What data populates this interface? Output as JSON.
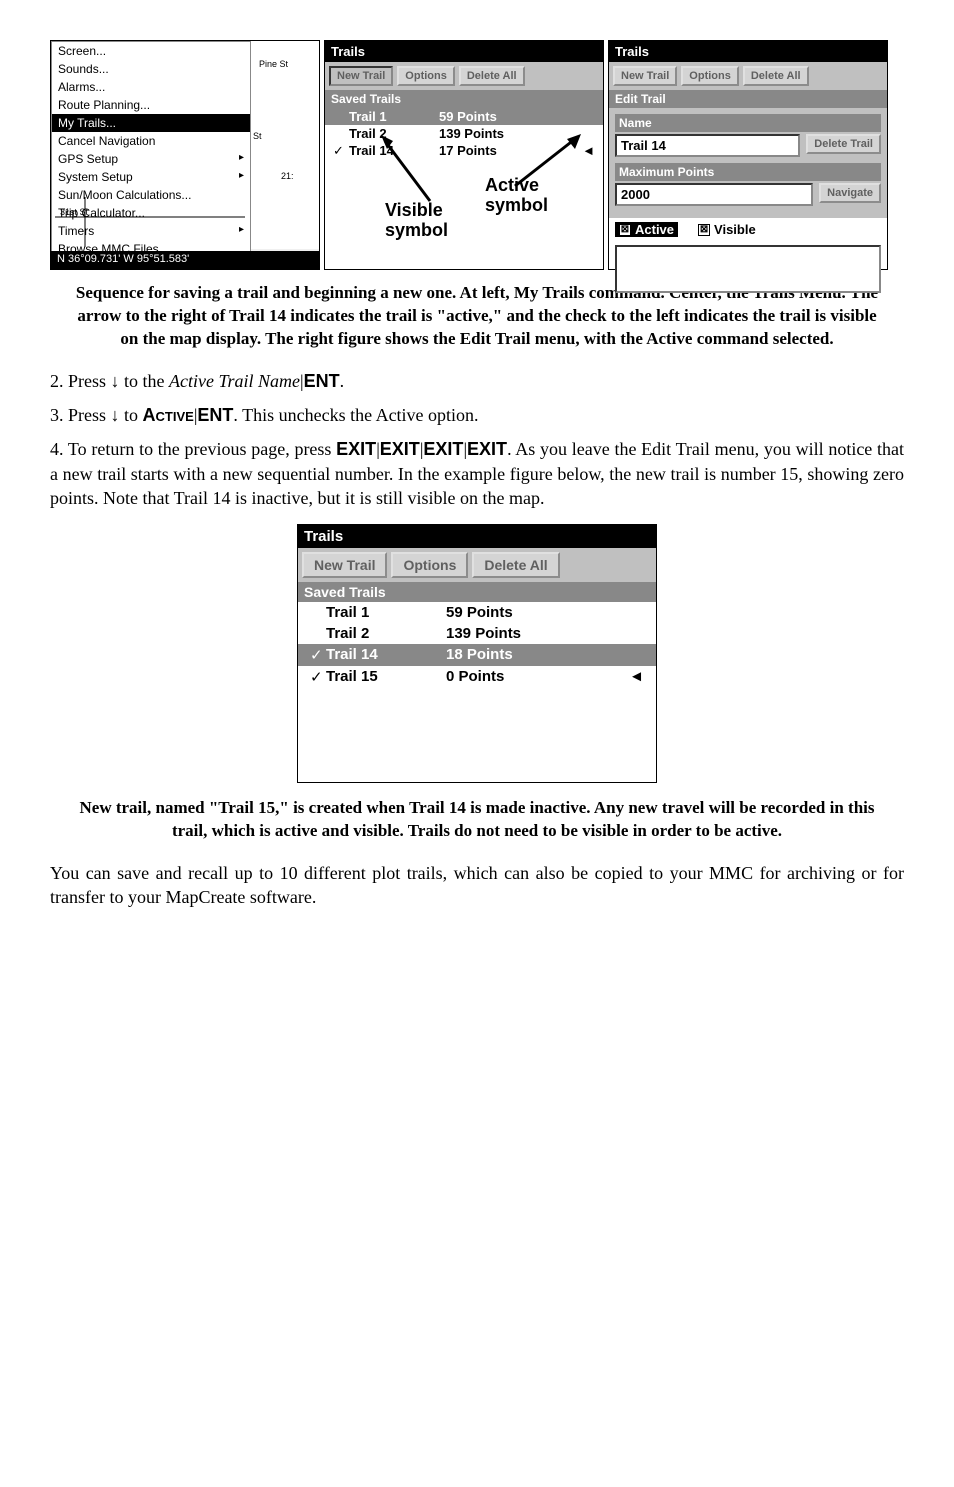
{
  "left_panel": {
    "menu_items": [
      {
        "label": "Screen...",
        "highlighted": false,
        "arrow": false
      },
      {
        "label": "Sounds...",
        "highlighted": false,
        "arrow": false
      },
      {
        "label": "Alarms...",
        "highlighted": false,
        "arrow": false
      },
      {
        "label": "Route Planning...",
        "highlighted": false,
        "arrow": false
      },
      {
        "label": "My Trails...",
        "highlighted": true,
        "arrow": false
      },
      {
        "label": "Cancel Navigation",
        "highlighted": false,
        "arrow": false
      },
      {
        "label": "GPS Setup",
        "highlighted": false,
        "arrow": true
      },
      {
        "label": "System Setup",
        "highlighted": false,
        "arrow": true
      },
      {
        "label": "Sun/Moon Calculations...",
        "highlighted": false,
        "arrow": false
      },
      {
        "label": "Trip Calculator...",
        "highlighted": false,
        "arrow": false
      },
      {
        "label": "Timers",
        "highlighted": false,
        "arrow": true
      },
      {
        "label": "Browse MMC Files...",
        "highlighted": false,
        "arrow": false
      }
    ],
    "map_labels": {
      "pine": "Pine St",
      "st": "St",
      "num": "21:"
    },
    "coords": "N  36°09.731'  W  95°51.583'"
  },
  "center_panel": {
    "title": "Trails",
    "buttons": {
      "new": "New Trail",
      "options": "Options",
      "delete": "Delete All"
    },
    "section": "Saved Trails",
    "rows": [
      {
        "check": "",
        "name": "Trail 1",
        "points": "59 Points",
        "marker": "",
        "highlighted": true
      },
      {
        "check": "",
        "name": "Trail 2",
        "points": "139 Points",
        "marker": "",
        "highlighted": false
      },
      {
        "check": "✓",
        "name": "Trail 14",
        "points": "17 Points",
        "marker": "◄",
        "highlighted": false
      }
    ],
    "annot_active": "Active symbol",
    "annot_visible": "Visible symbol"
  },
  "right_panel": {
    "title": "Trails",
    "buttons": {
      "new": "New Trail",
      "options": "Options",
      "delete": "Delete All"
    },
    "section": "Edit Trail",
    "name_label": "Name",
    "name_value": "Trail 14",
    "delete_trail": "Delete Trail",
    "max_label": "Maximum Points",
    "max_value": "2000",
    "navigate": "Navigate",
    "active_label": "Active",
    "visible_label": "Visible"
  },
  "caption1": "Sequence for saving a trail and beginning a new one. At left, My Trails command. Center, the Trails Menu. The arrow to the right of Trail 14 indicates the trail is \"active,\" and the check to the left indicates the trail is visible on the map display. The right figure shows the Edit Trail menu, with the Active command selected.",
  "step2_a": "2. Press ↓ to the ",
  "step2_b": "Active Trail Name",
  "step2_c": "|",
  "step2_d": "ENT",
  "step2_e": ".",
  "step3_a": "3. Press ↓ to ",
  "step3_b": "Active",
  "step3_c": "|",
  "step3_d": "ENT",
  "step3_e": ". This unchecks the Active option.",
  "step4_a": "4. To return to the previous page, press ",
  "step4_b": "EXIT",
  "step4_sep": "|",
  "step4_c": ". As you leave the Edit Trail menu, you will notice that a new trail starts with a new sequential number. In the example figure below, the new trail is number 15, showing zero points. Note that Trail 14 is inactive, but it is still visible on the map.",
  "big_panel": {
    "title": "Trails",
    "buttons": {
      "new": "New Trail",
      "options": "Options",
      "delete": "Delete All"
    },
    "section": "Saved Trails",
    "rows": [
      {
        "check": "",
        "name": "Trail 1",
        "points": "59 Points",
        "marker": "",
        "highlighted": false
      },
      {
        "check": "",
        "name": "Trail 2",
        "points": "139 Points",
        "marker": "",
        "highlighted": false
      },
      {
        "check": "✓",
        "name": "Trail 14",
        "points": "18 Points",
        "marker": "",
        "highlighted": true
      },
      {
        "check": "✓",
        "name": "Trail 15",
        "points": "0 Points",
        "marker": "◄",
        "highlighted": false
      }
    ]
  },
  "caption2": "New trail, named \"Trail 15,\" is created when Trail 14 is made inactive. Any new travel will be recorded in this trail, which is active and visible. Trails do not need to be visible in order to be active.",
  "closing": "You can save and recall up to 10 different plot trails, which can also be copied to your MMC for archiving or for transfer to your MapCreate software."
}
